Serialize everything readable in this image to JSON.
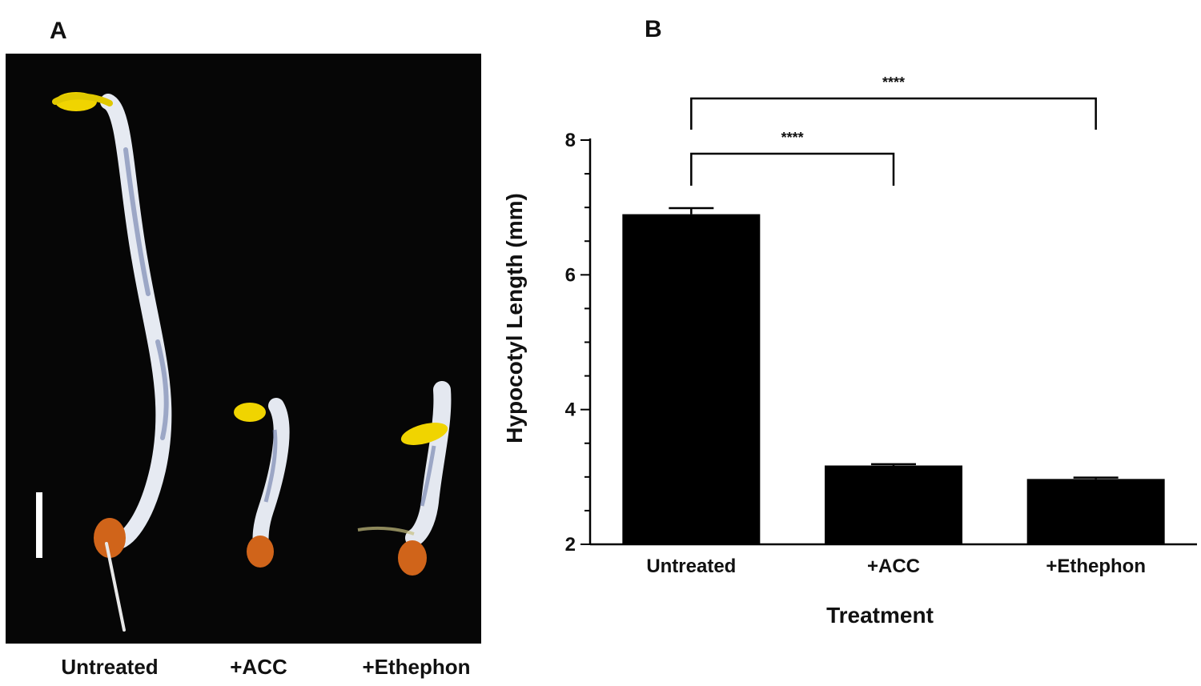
{
  "panel_a": {
    "letter": "A",
    "labels": [
      "Untreated",
      "+ACC",
      "+Ethephon"
    ]
  },
  "panel_b": {
    "letter": "B"
  },
  "colors": {
    "bar": "#000000",
    "photo_background": "#060606",
    "hypocotyl": "#e8ecf4",
    "cotyledon": "#f2d200",
    "seed_coat": "#d86a18"
  },
  "chart_data": {
    "type": "bar",
    "categories": [
      "Untreated",
      "+ACC",
      "+Ethephon"
    ],
    "values": [
      6.9,
      3.17,
      2.97
    ],
    "errors": [
      0.09,
      0.02,
      0.02
    ],
    "xlabel": "Treatment",
    "ylabel": "Hypocotyl Length (mm)",
    "ylim": [
      2,
      8
    ],
    "yticks": [
      2,
      4,
      6,
      8
    ],
    "grid": false,
    "significance": [
      {
        "from": "Untreated",
        "to": "+ACC",
        "label": "****"
      },
      {
        "from": "Untreated",
        "to": "+Ethephon",
        "label": "****"
      }
    ]
  }
}
